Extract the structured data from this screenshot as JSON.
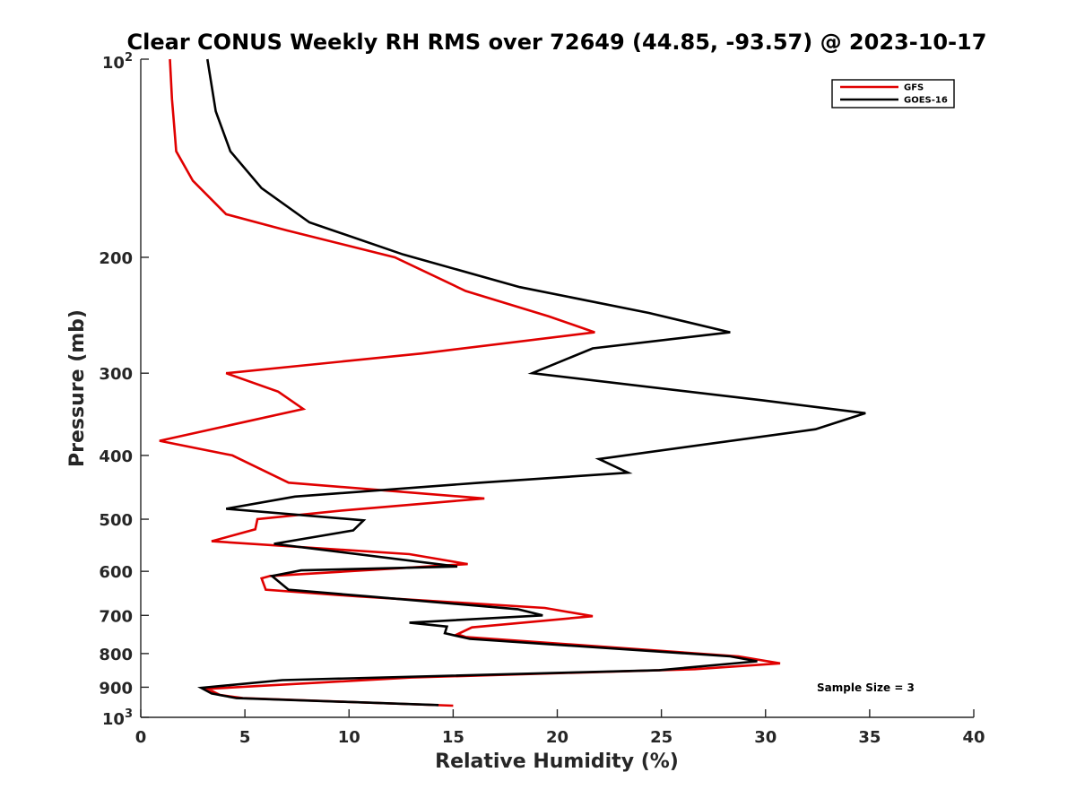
{
  "chart_data": {
    "type": "line",
    "title": "Clear CONUS Weekly RH RMS over 72649 (44.85, -93.57) @ 2023-10-17",
    "xlabel": "Relative Humidity (%)",
    "ylabel": "Pressure (mb)",
    "xlim": [
      0,
      40
    ],
    "ylim": [
      100,
      1000
    ],
    "yscale": "log",
    "y_reversed": true,
    "x_ticks": [
      "0",
      "5",
      "10",
      "15",
      "20",
      "25",
      "30",
      "35",
      "40"
    ],
    "y_ticks": [
      {
        "value": 200,
        "label": "200"
      },
      {
        "value": 300,
        "label": "300"
      },
      {
        "value": 400,
        "label": "400"
      },
      {
        "value": 500,
        "label": "500"
      },
      {
        "value": 600,
        "label": "600"
      },
      {
        "value": 700,
        "label": "700"
      },
      {
        "value": 800,
        "label": "800"
      },
      {
        "value": 900,
        "label": "900"
      }
    ],
    "y_edge_labels": {
      "top_base": "10",
      "top_exp": "2",
      "bottom_base": "10",
      "bottom_exp": "3"
    },
    "grid": false,
    "legend": "top-right",
    "annotation": "Sample Size = 3",
    "series": [
      {
        "name": "GFS",
        "color": "#e00000",
        "points": [
          [
            1.4,
            100
          ],
          [
            1.5,
            115
          ],
          [
            1.6,
            126
          ],
          [
            1.7,
            138
          ],
          [
            2.5,
            153
          ],
          [
            4.1,
            172
          ],
          [
            7.0,
            182
          ],
          [
            12.2,
            200
          ],
          [
            15.6,
            225
          ],
          [
            19.6,
            246
          ],
          [
            21.8,
            260
          ],
          [
            13.5,
            280
          ],
          [
            4.1,
            300
          ],
          [
            6.6,
            320
          ],
          [
            7.8,
            340
          ],
          [
            0.9,
            380
          ],
          [
            4.4,
            400
          ],
          [
            7.1,
            440
          ],
          [
            16.5,
            465
          ],
          [
            9.7,
            485
          ],
          [
            5.6,
            500
          ],
          [
            5.5,
            518
          ],
          [
            3.4,
            540
          ],
          [
            12.9,
            565
          ],
          [
            15.7,
            585
          ],
          [
            6.2,
            610
          ],
          [
            5.8,
            615
          ],
          [
            6.0,
            640
          ],
          [
            10.4,
            655
          ],
          [
            19.4,
            682
          ],
          [
            21.7,
            702
          ],
          [
            15.9,
            730
          ],
          [
            15.2,
            748
          ],
          [
            15.6,
            755
          ],
          [
            28.7,
            808
          ],
          [
            30.7,
            828
          ],
          [
            26.6,
            845
          ],
          [
            13.0,
            870
          ],
          [
            3.2,
            905
          ],
          [
            3.8,
            925
          ],
          [
            4.9,
            935
          ],
          [
            15.0,
            960
          ]
        ]
      },
      {
        "name": "GOES-16",
        "color": "#000000",
        "points": [
          [
            3.2,
            100
          ],
          [
            3.6,
            120
          ],
          [
            4.3,
            138
          ],
          [
            5.8,
            157
          ],
          [
            8.1,
            177
          ],
          [
            12.6,
            198
          ],
          [
            18.2,
            222
          ],
          [
            24.4,
            243
          ],
          [
            28.3,
            260
          ],
          [
            21.7,
            275
          ],
          [
            18.8,
            300
          ],
          [
            29.9,
            330
          ],
          [
            34.8,
            345
          ],
          [
            32.4,
            365
          ],
          [
            22.0,
            405
          ],
          [
            23.4,
            425
          ],
          [
            16.3,
            440
          ],
          [
            7.4,
            462
          ],
          [
            4.1,
            482
          ],
          [
            10.7,
            502
          ],
          [
            10.2,
            520
          ],
          [
            6.4,
            545
          ],
          [
            15.2,
            590
          ],
          [
            7.7,
            598
          ],
          [
            6.3,
            610
          ],
          [
            7.1,
            640
          ],
          [
            10.9,
            655
          ],
          [
            18.1,
            685
          ],
          [
            19.3,
            700
          ],
          [
            12.9,
            718
          ],
          [
            14.7,
            728
          ],
          [
            14.6,
            745
          ],
          [
            15.8,
            760
          ],
          [
            28.3,
            808
          ],
          [
            29.6,
            822
          ],
          [
            24.9,
            848
          ],
          [
            6.8,
            878
          ],
          [
            2.9,
            902
          ],
          [
            3.4,
            920
          ],
          [
            4.6,
            935
          ],
          [
            14.3,
            958
          ]
        ]
      }
    ]
  }
}
